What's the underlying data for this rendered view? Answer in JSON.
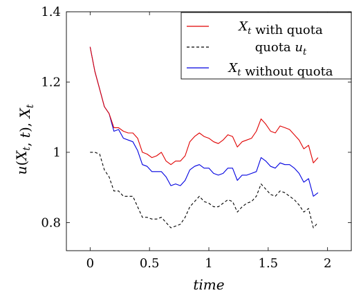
{
  "chart_data": {
    "type": "line",
    "xlabel": "time",
    "ylabel": "u(X_t, t),     X_t",
    "xlim": [
      -0.2,
      2.2
    ],
    "ylim": [
      0.72,
      1.4
    ],
    "xticks": [
      0,
      0.5,
      1,
      1.5,
      2
    ],
    "xtick_labels": [
      "0",
      "0.5",
      "1",
      "1.5",
      "2"
    ],
    "yticks": [
      0.8,
      1.0,
      1.2,
      1.4
    ],
    "ytick_labels": [
      "0.8",
      "1",
      "1.2",
      "1.4"
    ],
    "grid": false,
    "legend_position": "top-right",
    "series": [
      {
        "name": "X_t with quota",
        "color": "#e00000",
        "dash": "solid",
        "x": [
          0,
          0.04,
          0.08,
          0.12,
          0.16,
          0.2,
          0.24,
          0.28,
          0.32,
          0.36,
          0.4,
          0.44,
          0.48,
          0.52,
          0.56,
          0.6,
          0.64,
          0.68,
          0.72,
          0.76,
          0.8,
          0.84,
          0.88,
          0.92,
          0.96,
          1.0,
          1.04,
          1.08,
          1.12,
          1.16,
          1.2,
          1.24,
          1.28,
          1.32,
          1.36,
          1.4,
          1.44,
          1.48,
          1.52,
          1.56,
          1.6,
          1.64,
          1.68,
          1.72,
          1.76,
          1.8,
          1.84,
          1.88,
          1.92
        ],
        "y": [
          1.3,
          1.23,
          1.18,
          1.13,
          1.11,
          1.07,
          1.07,
          1.06,
          1.055,
          1.055,
          1.04,
          1.0,
          0.995,
          0.985,
          0.99,
          1.0,
          0.975,
          0.965,
          0.975,
          0.975,
          0.99,
          1.03,
          1.045,
          1.055,
          1.045,
          1.04,
          1.03,
          1.025,
          1.035,
          1.05,
          1.045,
          1.015,
          1.03,
          1.035,
          1.04,
          1.06,
          1.095,
          1.08,
          1.06,
          1.055,
          1.075,
          1.07,
          1.065,
          1.05,
          1.035,
          1.01,
          1.02,
          0.97,
          0.985
        ]
      },
      {
        "name": "quota u_t",
        "color": "#000000",
        "dash": "dashed",
        "x": [
          0,
          0.04,
          0.08,
          0.12,
          0.16,
          0.2,
          0.24,
          0.28,
          0.32,
          0.36,
          0.4,
          0.44,
          0.48,
          0.52,
          0.56,
          0.6,
          0.64,
          0.68,
          0.72,
          0.76,
          0.8,
          0.84,
          0.88,
          0.92,
          0.96,
          1.0,
          1.04,
          1.08,
          1.12,
          1.16,
          1.2,
          1.24,
          1.28,
          1.32,
          1.36,
          1.4,
          1.44,
          1.48,
          1.52,
          1.56,
          1.6,
          1.64,
          1.68,
          1.72,
          1.76,
          1.8,
          1.84,
          1.88,
          1.92
        ],
        "y": [
          1.0,
          1.0,
          0.995,
          0.95,
          0.93,
          0.89,
          0.89,
          0.875,
          0.875,
          0.875,
          0.845,
          0.815,
          0.815,
          0.81,
          0.81,
          0.815,
          0.8,
          0.785,
          0.79,
          0.795,
          0.815,
          0.845,
          0.86,
          0.875,
          0.86,
          0.855,
          0.845,
          0.845,
          0.855,
          0.865,
          0.86,
          0.83,
          0.845,
          0.855,
          0.86,
          0.875,
          0.91,
          0.895,
          0.88,
          0.875,
          0.89,
          0.885,
          0.875,
          0.865,
          0.85,
          0.83,
          0.84,
          0.785,
          0.8
        ]
      },
      {
        "name": "X_t without quota",
        "color": "#0000e0",
        "dash": "solid",
        "x": [
          0,
          0.04,
          0.08,
          0.12,
          0.16,
          0.2,
          0.24,
          0.28,
          0.32,
          0.36,
          0.4,
          0.44,
          0.48,
          0.52,
          0.56,
          0.6,
          0.64,
          0.68,
          0.72,
          0.76,
          0.8,
          0.84,
          0.88,
          0.92,
          0.96,
          1.0,
          1.04,
          1.08,
          1.12,
          1.16,
          1.2,
          1.24,
          1.28,
          1.32,
          1.36,
          1.4,
          1.44,
          1.48,
          1.52,
          1.56,
          1.6,
          1.64,
          1.68,
          1.72,
          1.76,
          1.8,
          1.84,
          1.88,
          1.92
        ],
        "y": [
          1.3,
          1.23,
          1.18,
          1.13,
          1.11,
          1.06,
          1.065,
          1.04,
          1.035,
          1.03,
          1.005,
          0.965,
          0.96,
          0.945,
          0.945,
          0.945,
          0.93,
          0.905,
          0.91,
          0.905,
          0.92,
          0.95,
          0.96,
          0.965,
          0.955,
          0.955,
          0.94,
          0.935,
          0.94,
          0.955,
          0.955,
          0.92,
          0.935,
          0.935,
          0.94,
          0.945,
          0.985,
          0.975,
          0.96,
          0.955,
          0.97,
          0.965,
          0.965,
          0.955,
          0.94,
          0.915,
          0.925,
          0.875,
          0.885
        ]
      }
    ]
  }
}
